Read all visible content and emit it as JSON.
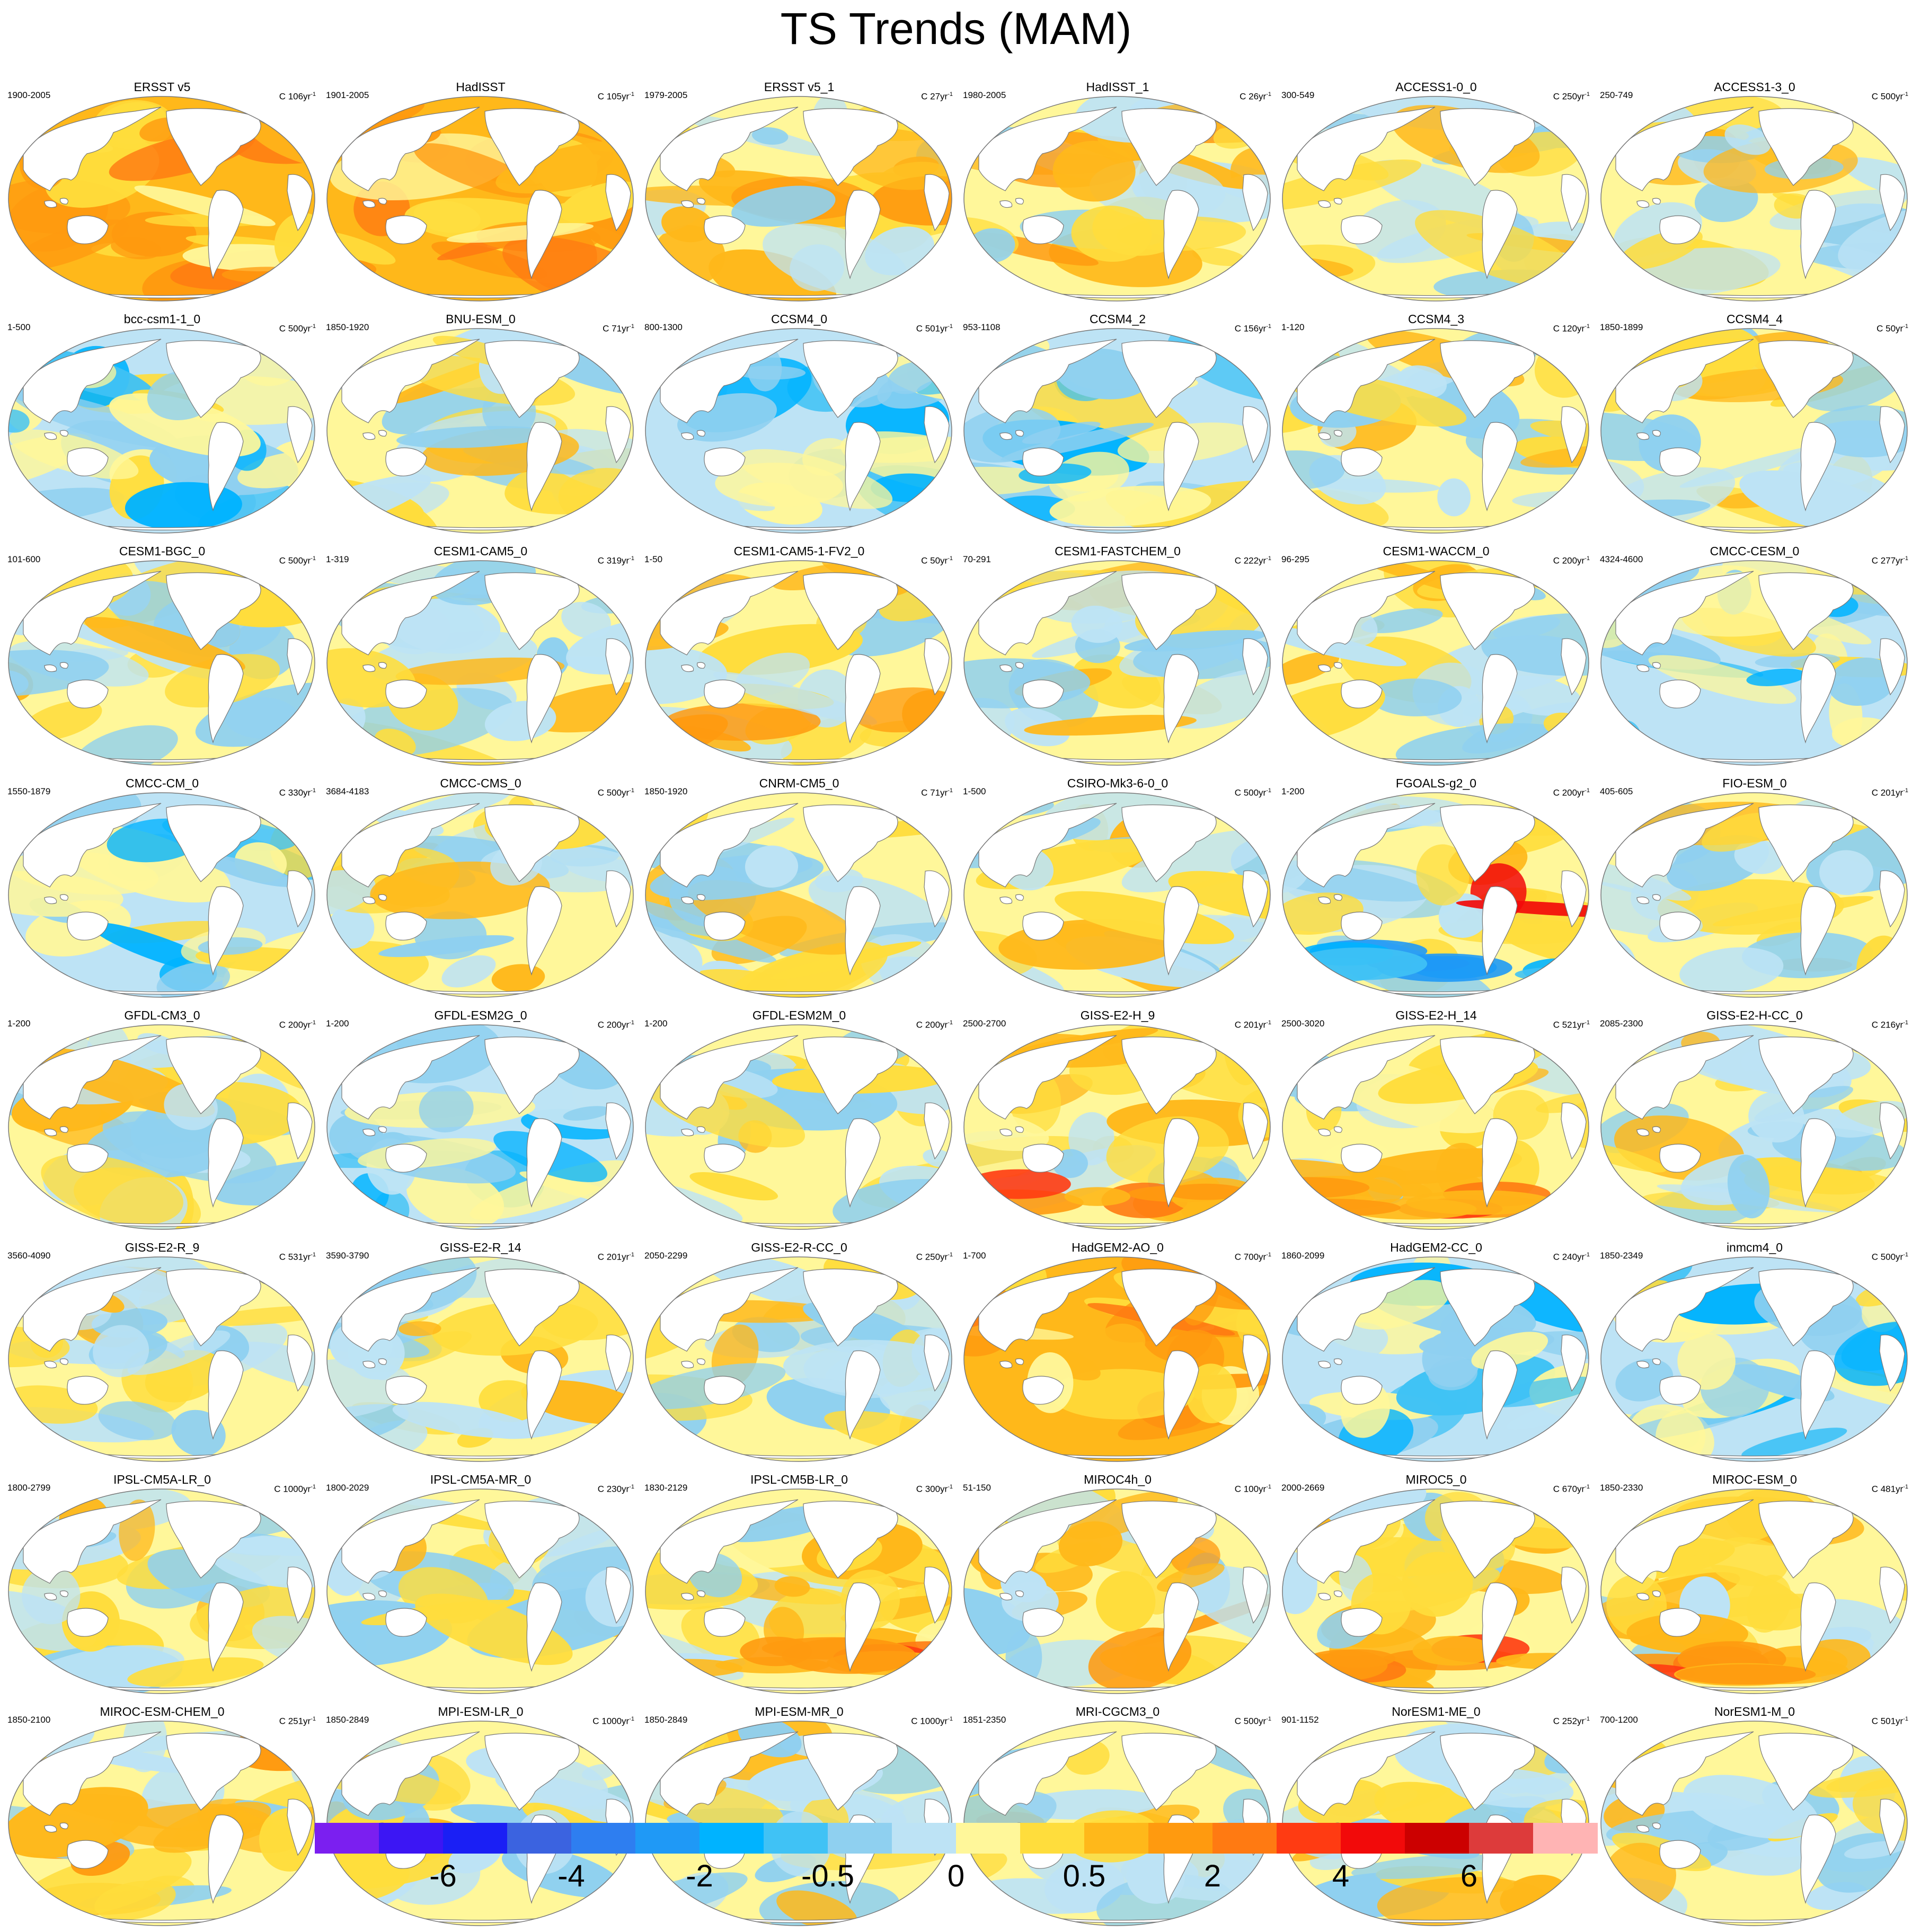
{
  "title": "TS Trends (MAM)",
  "colors": {
    "land": "#ffffff",
    "outline": "#777777",
    "scale": [
      "#7b1ff0",
      "#3c16f4",
      "#1a1ff5",
      "#3b63e0",
      "#2e7ef0",
      "#1f99f6",
      "#00b3ff",
      "#40c2f5",
      "#8fd0f0",
      "#bde3f5",
      "#fff79a",
      "#ffdd3c",
      "#ffb81a",
      "#ff9a0f",
      "#ff7a12",
      "#ff3b12",
      "#f20a0a",
      "#cc0000",
      "#dd3b3b",
      "#ffb4b4"
    ]
  },
  "colorbar": {
    "labels": [
      "-6",
      "-4",
      "-2",
      "-0.5",
      "0",
      "0.5",
      "2",
      "4",
      "6"
    ]
  },
  "panels": [
    {
      "name": "ERSST v5",
      "years": "1900-2005",
      "scale": "C 106yr",
      "style": "warm"
    },
    {
      "name": "HadISST",
      "years": "1901-2005",
      "scale": "C 105yr",
      "style": "warm"
    },
    {
      "name": "ERSST v5_1",
      "years": "1979-2005",
      "scale": "C 27yr",
      "style": "mix-warm"
    },
    {
      "name": "HadISST_1",
      "years": "1980-2005",
      "scale": "C 26yr",
      "style": "mix-warm"
    },
    {
      "name": "ACCESS1-0_0",
      "years": "300-549",
      "scale": "C 250yr",
      "style": "mix"
    },
    {
      "name": "ACCESS1-3_0",
      "years": "250-749",
      "scale": "C 500yr",
      "style": "mix"
    },
    {
      "name": "bcc-csm1-1_0",
      "years": "1-500",
      "scale": "C 500yr",
      "style": "mix-cool"
    },
    {
      "name": "BNU-ESM_0",
      "years": "1850-1920",
      "scale": "C 71yr",
      "style": "mix"
    },
    {
      "name": "CCSM4_0",
      "years": "800-1300",
      "scale": "C 501yr",
      "style": "cool"
    },
    {
      "name": "CCSM4_2",
      "years": "953-1108",
      "scale": "C 156yr",
      "style": "mix-cool"
    },
    {
      "name": "CCSM4_3",
      "years": "1-120",
      "scale": "C 120yr",
      "style": "mix"
    },
    {
      "name": "CCSM4_4",
      "years": "1850-1899",
      "scale": "C 50yr",
      "style": "mix"
    },
    {
      "name": "CESM1-BGC_0",
      "years": "101-600",
      "scale": "C 500yr",
      "style": "mix"
    },
    {
      "name": "CESM1-CAM5_0",
      "years": "1-319",
      "scale": "C 319yr",
      "style": "mix"
    },
    {
      "name": "CESM1-CAM5-1-FV2_0",
      "years": "1-50",
      "scale": "C 50yr",
      "style": "mix-warm"
    },
    {
      "name": "CESM1-FASTCHEM_0",
      "years": "70-291",
      "scale": "C 222yr",
      "style": "mix"
    },
    {
      "name": "CESM1-WACCM_0",
      "years": "96-295",
      "scale": "C 200yr",
      "style": "mix"
    },
    {
      "name": "CMCC-CESM_0",
      "years": "4324-4600",
      "scale": "C 277yr",
      "style": "mix-cool"
    },
    {
      "name": "CMCC-CM_0",
      "years": "1550-1879",
      "scale": "C 330yr",
      "style": "mix-cool"
    },
    {
      "name": "CMCC-CMS_0",
      "years": "3684-4183",
      "scale": "C 500yr",
      "style": "mix"
    },
    {
      "name": "CNRM-CM5_0",
      "years": "1850-1920",
      "scale": "C 71yr",
      "style": "mix"
    },
    {
      "name": "CSIRO-Mk3-6-0_0",
      "years": "1-500",
      "scale": "C 500yr",
      "style": "mix"
    },
    {
      "name": "FGOALS-g2_0",
      "years": "1-200",
      "scale": "C 200yr",
      "style": "mix-strong"
    },
    {
      "name": "FIO-ESM_0",
      "years": "405-605",
      "scale": "C 201yr",
      "style": "mix"
    },
    {
      "name": "GFDL-CM3_0",
      "years": "1-200",
      "scale": "C 200yr",
      "style": "mix"
    },
    {
      "name": "GFDL-ESM2G_0",
      "years": "1-200",
      "scale": "C 200yr",
      "style": "cool"
    },
    {
      "name": "GFDL-ESM2M_0",
      "years": "1-200",
      "scale": "C 200yr",
      "style": "mix"
    },
    {
      "name": "GISS-E2-H_9",
      "years": "2500-2700",
      "scale": "C 201yr",
      "style": "warm-south"
    },
    {
      "name": "GISS-E2-H_14",
      "years": "2500-3020",
      "scale": "C 521yr",
      "style": "warm-south"
    },
    {
      "name": "GISS-E2-H-CC_0",
      "years": "2085-2300",
      "scale": "C 216yr",
      "style": "mix"
    },
    {
      "name": "GISS-E2-R_9",
      "years": "3560-4090",
      "scale": "C 531yr",
      "style": "mix"
    },
    {
      "name": "GISS-E2-R_14",
      "years": "3590-3790",
      "scale": "C 201yr",
      "style": "mix"
    },
    {
      "name": "GISS-E2-R-CC_0",
      "years": "2050-2299",
      "scale": "C 250yr",
      "style": "mix"
    },
    {
      "name": "HadGEM2-AO_0",
      "years": "1-700",
      "scale": "C 700yr",
      "style": "warm"
    },
    {
      "name": "HadGEM2-CC_0",
      "years": "1860-2099",
      "scale": "C 240yr",
      "style": "cool"
    },
    {
      "name": "inmcm4_0",
      "years": "1850-2349",
      "scale": "C 500yr",
      "style": "mix-cool"
    },
    {
      "name": "IPSL-CM5A-LR_0",
      "years": "1800-2799",
      "scale": "C 1000yr",
      "style": "mix"
    },
    {
      "name": "IPSL-CM5A-MR_0",
      "years": "1800-2029",
      "scale": "C 230yr",
      "style": "mix"
    },
    {
      "name": "IPSL-CM5B-LR_0",
      "years": "1830-2129",
      "scale": "C 300yr",
      "style": "warm-south"
    },
    {
      "name": "MIROC4h_0",
      "years": "51-150",
      "scale": "C 100yr",
      "style": "mix-warm"
    },
    {
      "name": "MIROC5_0",
      "years": "2000-2669",
      "scale": "C 670yr",
      "style": "warm-south"
    },
    {
      "name": "MIROC-ESM_0",
      "years": "1850-2330",
      "scale": "C 481yr",
      "style": "warm-south"
    },
    {
      "name": "MIROC-ESM-CHEM_0",
      "years": "1850-2100",
      "scale": "C 251yr",
      "style": "mix-warm"
    },
    {
      "name": "MPI-ESM-LR_0",
      "years": "1850-2849",
      "scale": "C 1000yr",
      "style": "mix"
    },
    {
      "name": "MPI-ESM-MR_0",
      "years": "1850-2849",
      "scale": "C 1000yr",
      "style": "mix"
    },
    {
      "name": "MRI-CGCM3_0",
      "years": "1851-2350",
      "scale": "C 500yr",
      "style": "mix"
    },
    {
      "name": "NorESM1-ME_0",
      "years": "901-1152",
      "scale": "C 252yr",
      "style": "mix"
    },
    {
      "name": "NorESM1-M_0",
      "years": "700-1200",
      "scale": "C 501yr",
      "style": "mix"
    }
  ]
}
